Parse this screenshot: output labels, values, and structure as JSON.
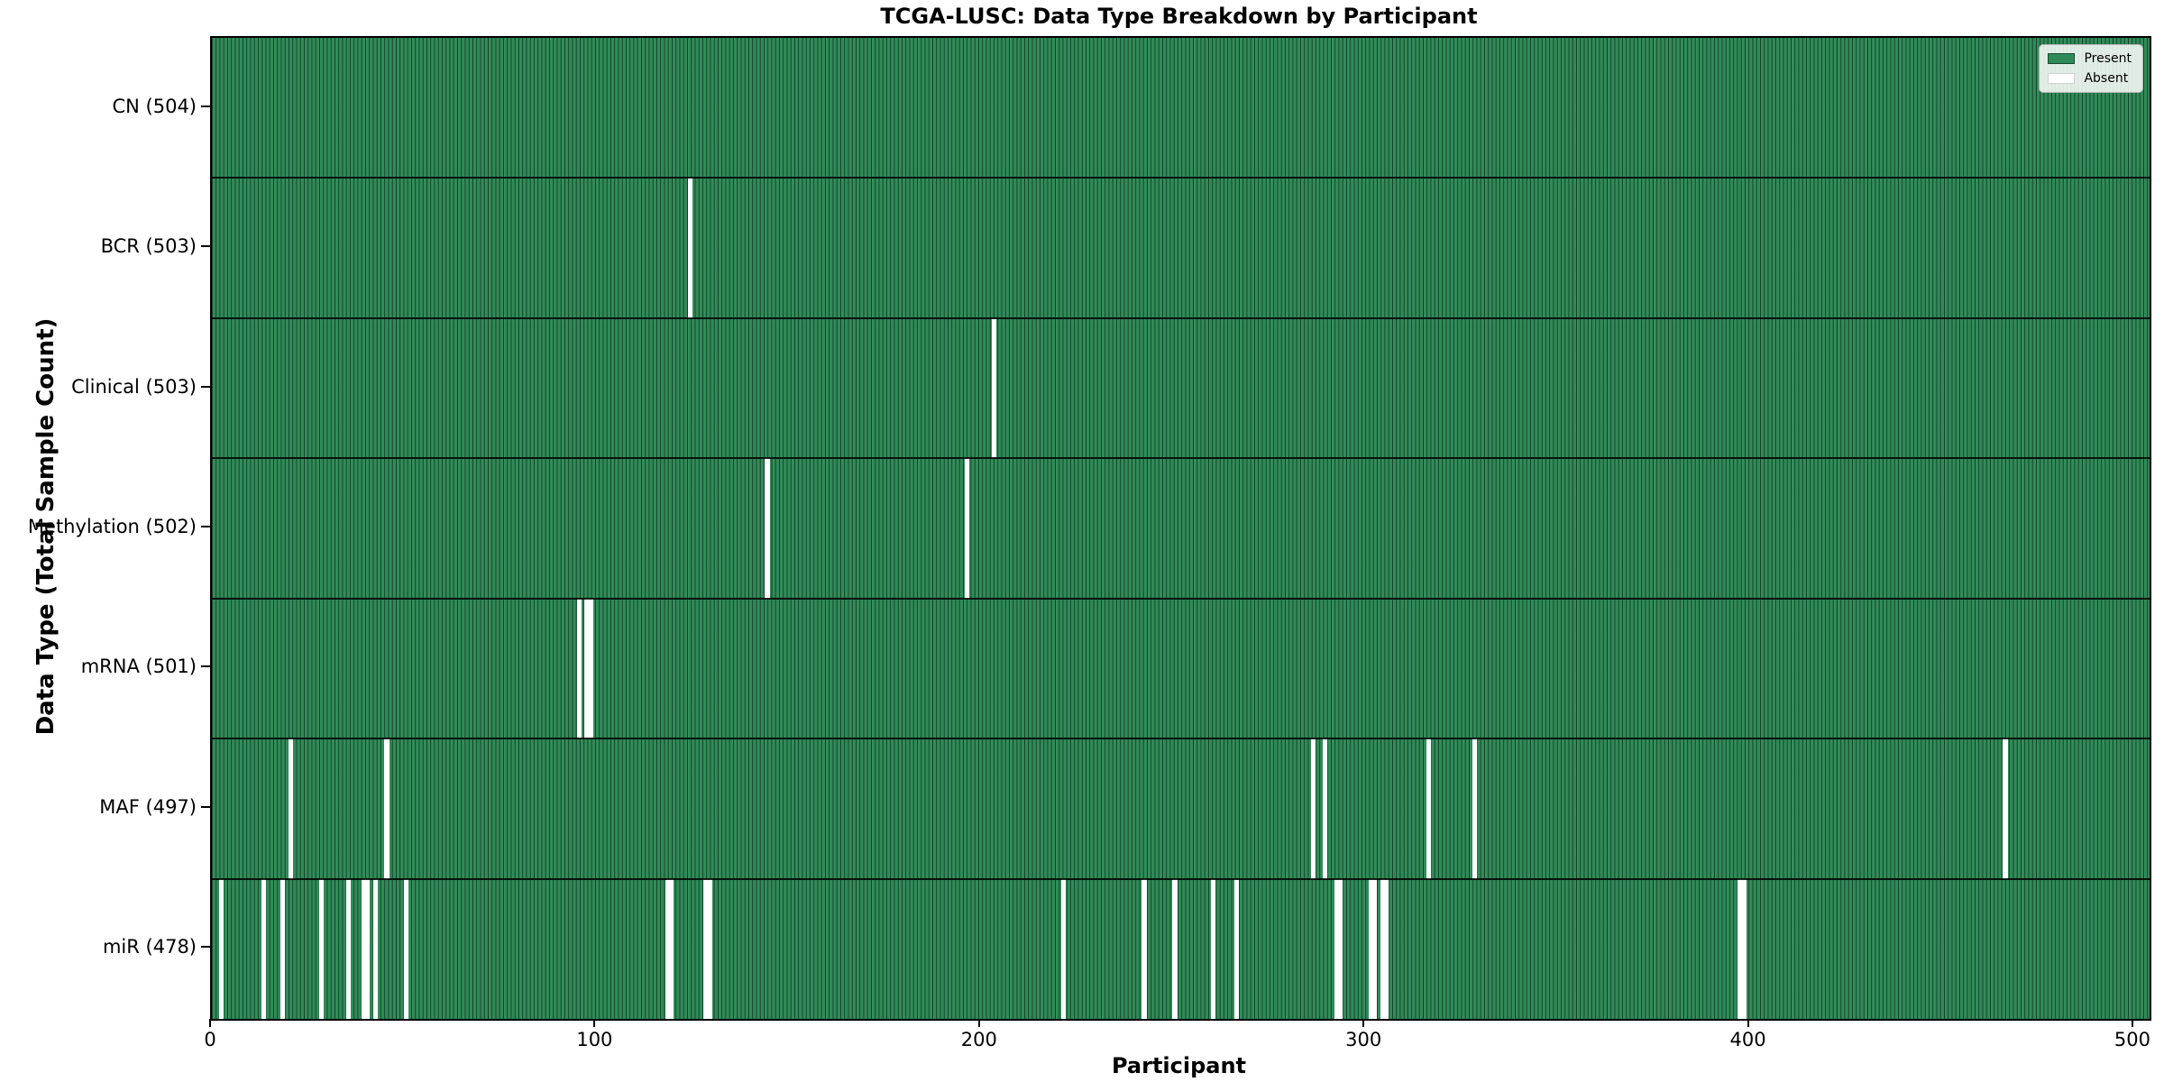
{
  "chart_data": {
    "type": "heatmap",
    "title": "TCGA-LUSC: Data Type Breakdown by Participant",
    "xlabel": "Participant",
    "ylabel": "Data Type (Total Sample Count)",
    "n_participants": 504,
    "xlim": [
      0,
      504
    ],
    "xticks": [
      0,
      100,
      200,
      300,
      400,
      500
    ],
    "grid": false,
    "legend": {
      "position": "upper right",
      "entries": [
        {
          "label": "Present",
          "color": "#2e8b57"
        },
        {
          "label": "Absent",
          "color": "#ffffff"
        }
      ]
    },
    "colors": {
      "present": "#2e8b57",
      "bar_edge": "rgba(0,0,0,0.55)",
      "absent": "#ffffff"
    },
    "rows": [
      {
        "data_type": "CN",
        "label": "CN (504)",
        "present_count": 504,
        "absent_participants": []
      },
      {
        "data_type": "BCR",
        "label": "BCR (503)",
        "present_count": 503,
        "absent_participants": [
          124
        ]
      },
      {
        "data_type": "Clinical",
        "label": "Clinical (503)",
        "present_count": 503,
        "absent_participants": [
          203
        ]
      },
      {
        "data_type": "Methylation",
        "label": "Methylation (502)",
        "present_count": 502,
        "absent_participants": [
          144,
          196
        ]
      },
      {
        "data_type": "mRNA",
        "label": "mRNA (501)",
        "present_count": 501,
        "absent_participants": [
          95,
          97,
          98
        ]
      },
      {
        "data_type": "MAF",
        "label": "MAF (497)",
        "present_count": 497,
        "absent_participants": [
          20,
          45,
          286,
          289,
          316,
          328,
          466
        ]
      },
      {
        "data_type": "miR",
        "label": "miR (478)",
        "present_count": 478,
        "absent_participants": [
          2,
          13,
          18,
          28,
          35,
          39,
          40,
          42,
          50,
          118,
          119,
          128,
          129,
          221,
          242,
          250,
          260,
          266,
          292,
          293,
          301,
          302,
          304,
          305,
          397,
          398
        ]
      }
    ]
  }
}
